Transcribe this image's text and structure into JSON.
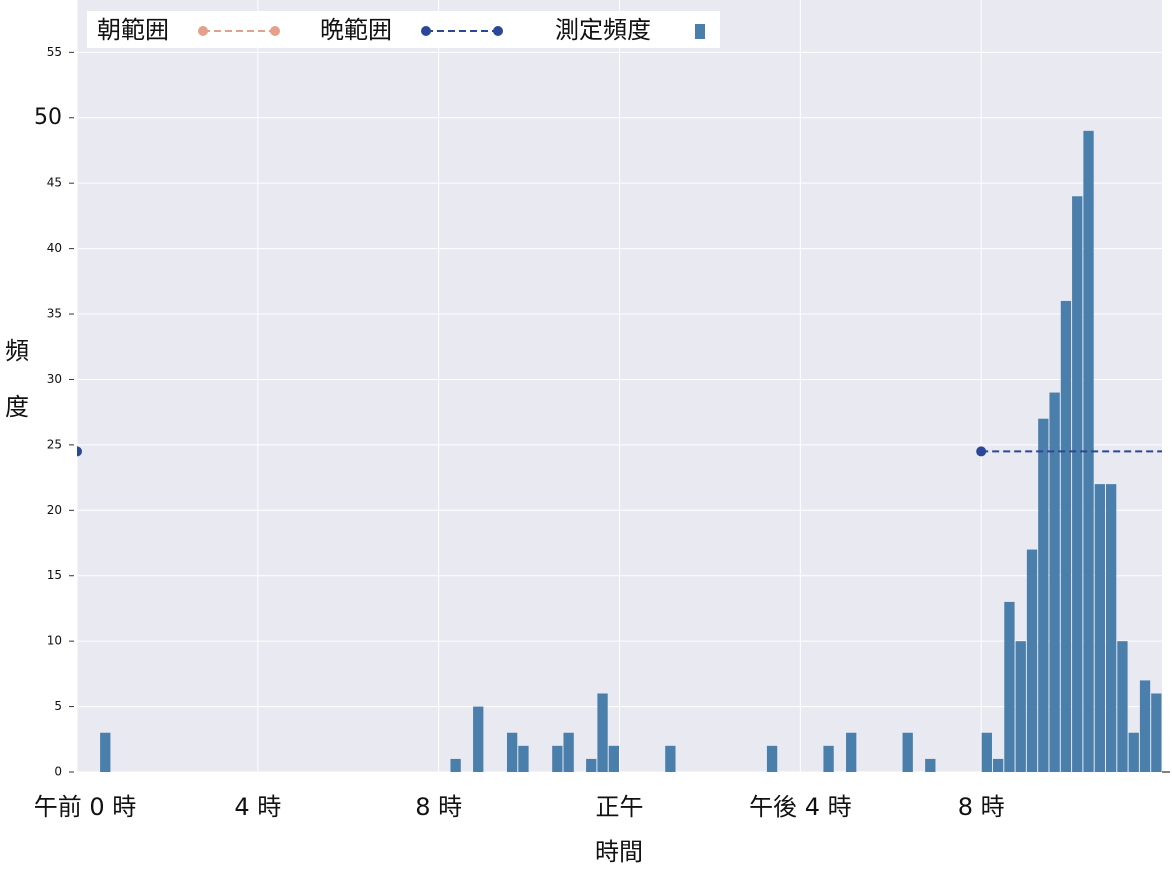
{
  "chart_data": {
    "type": "histogram",
    "xlabel": "時間",
    "ylabel": "頻度",
    "xlim": [
      0,
      24
    ],
    "ylim": [
      0,
      59
    ],
    "xticks": [
      {
        "value": 0,
        "label": "午前 0 時"
      },
      {
        "value": 4,
        "label": "4 時"
      },
      {
        "value": 8,
        "label": "8 時"
      },
      {
        "value": 12,
        "label": "正午"
      },
      {
        "value": 16,
        "label": "午後 4 時"
      },
      {
        "value": 20,
        "label": "8 時"
      }
    ],
    "yticks": [
      0,
      5,
      10,
      15,
      20,
      25,
      30,
      35,
      40,
      45,
      50,
      55
    ],
    "emphasized_ytick": 50,
    "grid": true,
    "legend_position": "top-left",
    "histogram": {
      "name": "測定頻度",
      "color": "#4a7eab",
      "bins": [
        0,
        0.25,
        0.5,
        0.75,
        1,
        1.25,
        1.5,
        1.75,
        2,
        2.25,
        2.5,
        2.75,
        3,
        3.25,
        3.5,
        3.75,
        4,
        4.25,
        4.5,
        4.75,
        5,
        5.25,
        5.5,
        5.75,
        6,
        6.25,
        6.5,
        6.75,
        7,
        7.25,
        7.5,
        7.75,
        8,
        8.25,
        8.5,
        8.75,
        9,
        9.25,
        9.5,
        9.75,
        10,
        10.25,
        10.5,
        10.75,
        11,
        11.25,
        11.5,
        11.75,
        12,
        12.25,
        12.5,
        12.75,
        13,
        13.25,
        13.5,
        13.75,
        14,
        14.25,
        14.5,
        14.75,
        15,
        15.25,
        15.5,
        15.75,
        16,
        16.25,
        16.5,
        16.75,
        17,
        17.25,
        17.5,
        17.75,
        18,
        18.25,
        18.5,
        18.75,
        19,
        19.25,
        19.5,
        19.75,
        20,
        20.25,
        20.5,
        20.75,
        21,
        21.25,
        21.5,
        21.75,
        22,
        22.25,
        22.5,
        22.75,
        23,
        23.25,
        23.5,
        23.75,
        24
      ],
      "counts": [
        0,
        0,
        3,
        0,
        0,
        0,
        0,
        0,
        0,
        0,
        0,
        0,
        0,
        0,
        0,
        0,
        0,
        0,
        0,
        0,
        0,
        0,
        0,
        0,
        0,
        0,
        0,
        0,
        0,
        0,
        0,
        0,
        0,
        1,
        0,
        5,
        0,
        0,
        3,
        2,
        0,
        0,
        2,
        3,
        0,
        1,
        6,
        2,
        0,
        0,
        0,
        0,
        2,
        0,
        0,
        0,
        0,
        0,
        0,
        0,
        0,
        2,
        0,
        0,
        0,
        0,
        2,
        0,
        3,
        0,
        0,
        0,
        0,
        3,
        0,
        1,
        0,
        0,
        0,
        0,
        3,
        1,
        13,
        10,
        17,
        27,
        29,
        36,
        44,
        49,
        22,
        22,
        10,
        3,
        7,
        6
      ]
    },
    "series": [
      {
        "name": "朝範囲",
        "color": "#e4a08a",
        "pieces": []
      },
      {
        "name": "晩範囲",
        "color": "#2b4797",
        "pieces": [
          {
            "x": [
              0
            ],
            "values": [
              24.5
            ]
          },
          {
            "x": [
              20,
              24
            ],
            "values": [
              24.5,
              24.5
            ]
          }
        ]
      }
    ]
  }
}
